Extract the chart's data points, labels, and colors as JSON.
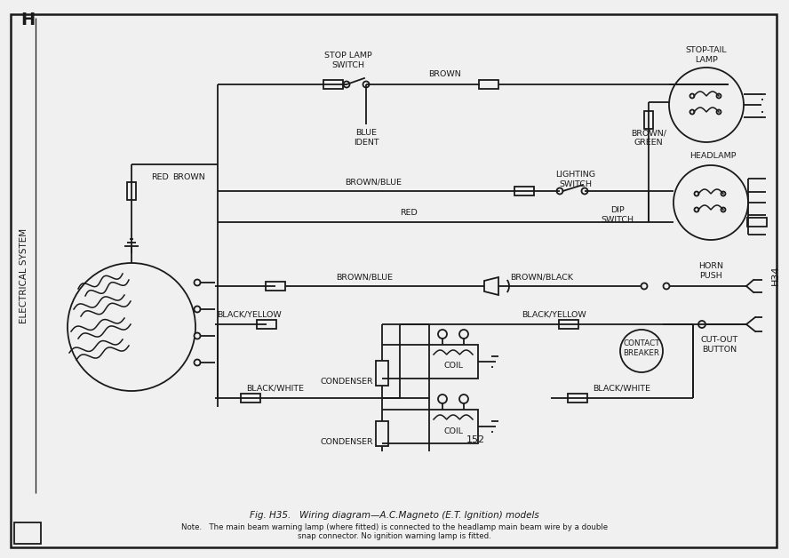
{
  "bg_color": "#f0f0f0",
  "line_color": "#1a1a1a",
  "title": "Fig. H35.   Wiring diagram—A.C.Magneto (E.T. Ignition) models",
  "note_line1": "Note.   The main beam warning lamp (where fitted) is connected to the headlamp main beam wire by a double",
  "note_line2": "snap connector. No ignition warning lamp is fitted.",
  "section_label": "ELECTRICAL SYSTEM",
  "page_number": "152",
  "lw": 1.3,
  "fs": 6.8
}
